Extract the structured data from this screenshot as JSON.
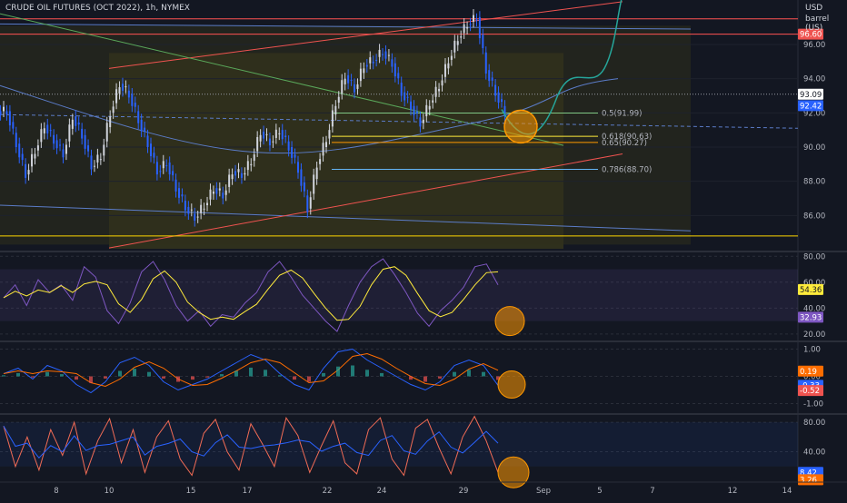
{
  "header": {
    "title": "CRUDE OIL FUTURES (OCT 2022), 1h, NYMEX",
    "unit_line1": "USD",
    "unit_line2": "barrel (US)"
  },
  "colors": {
    "background": "#131722",
    "candle_up": "#d1d4dc",
    "candle_down": "#2962ff",
    "channel": "#f05350",
    "fib_zone": "#3b3b1b",
    "rsi": "#7e57c2",
    "rsi_ma": "#ffeb3b",
    "macd": "#2962ff",
    "signal": "#ff6d00",
    "circle": "#ff9800",
    "projection": "#26a69a"
  },
  "chart_data": [
    {
      "type": "candlestick",
      "title": "CRUDE OIL FUTURES (OCT 2022), 1h, NYMEX",
      "ylim": [
        84,
        98.6
      ],
      "y_ticks": [
        "86.00",
        "88.00",
        "90.00",
        "92.00",
        "94.00",
        "96.00"
      ],
      "x_ticks": [
        "8",
        "10",
        "15",
        "17",
        "22",
        "24",
        "29",
        "Sep",
        "5",
        "7",
        "12",
        "14"
      ],
      "price_path": [
        92.1,
        90.2,
        88.4,
        89.8,
        91.3,
        90.4,
        89.6,
        91.8,
        90.7,
        88.9,
        89.5,
        92.0,
        93.7,
        93.1,
        91.6,
        90.2,
        88.6,
        89.1,
        87.6,
        86.5,
        85.9,
        86.6,
        87.6,
        87.2,
        88.6,
        88.4,
        89.2,
        90.9,
        90.3,
        91.0,
        90.0,
        88.7,
        86.4,
        89.0,
        90.5,
        92.6,
        94.2,
        93.4,
        94.8,
        95.1,
        95.6,
        94.9,
        93.2,
        92.4,
        91.4,
        92.6,
        93.6,
        95.1,
        96.4,
        97.2,
        97.6,
        94.5,
        93.2,
        92.0
      ],
      "last_price": "93.09",
      "price_tags": [
        "96.60",
        "93.09",
        "92.42"
      ],
      "fib_levels": [
        {
          "label": "0.5(91.99)",
          "value": 91.99
        },
        {
          "label": "0.618(90.63)",
          "value": 90.63
        },
        {
          "label": "0.65(90.27)",
          "value": 90.27
        },
        {
          "label": "0.786(88.70)",
          "value": 88.7
        }
      ]
    },
    {
      "type": "line",
      "title": "",
      "ylim": [
        15,
        83
      ],
      "y_ticks": [
        "20.00",
        "40.00",
        "60.00",
        "80.00"
      ],
      "rsi": [
        48,
        58,
        42,
        62,
        52,
        58,
        46,
        72,
        64,
        38,
        28,
        44,
        68,
        76,
        62,
        42,
        30,
        38,
        26,
        35,
        33,
        44,
        52,
        68,
        76,
        64,
        50,
        40,
        30,
        22,
        42,
        60,
        72,
        78,
        66,
        52,
        36,
        26,
        38,
        46,
        56,
        72,
        74,
        58
      ],
      "rsi_ma_tag": "54.36",
      "rsi_tag": "32.93"
    },
    {
      "type": "line",
      "title": "",
      "ylim": [
        -1.35,
        1.25
      ],
      "y_ticks": [
        "-1.00",
        "0.00",
        "1.00"
      ],
      "macd": [
        0.1,
        0.3,
        -0.1,
        0.4,
        0.2,
        -0.3,
        -0.6,
        -0.2,
        0.5,
        0.7,
        0.4,
        -0.2,
        -0.5,
        -0.3,
        -0.1,
        0.2,
        0.5,
        0.8,
        0.6,
        0.1,
        -0.3,
        -0.5,
        0.3,
        0.9,
        1.0,
        0.6,
        0.3,
        0.0,
        -0.3,
        -0.5,
        -0.2,
        0.4,
        0.6,
        0.4,
        -0.33
      ],
      "tags": [
        "0.19",
        "-0.33",
        "-0.52"
      ]
    },
    {
      "type": "line",
      "title": "",
      "ylim": [
        0,
        90
      ],
      "y_ticks": [
        "40.00",
        "80.00"
      ],
      "stoch": [
        75,
        20,
        60,
        15,
        70,
        35,
        80,
        10,
        55,
        85,
        25,
        70,
        12,
        60,
        82,
        30,
        8,
        65,
        84,
        40,
        15,
        78,
        50,
        20,
        86,
        62,
        12,
        48,
        82,
        25,
        10,
        70,
        86,
        30,
        8,
        72,
        84,
        45,
        10,
        60,
        88,
        55,
        12
      ],
      "tags": [
        "8.42",
        "3.26"
      ]
    }
  ]
}
